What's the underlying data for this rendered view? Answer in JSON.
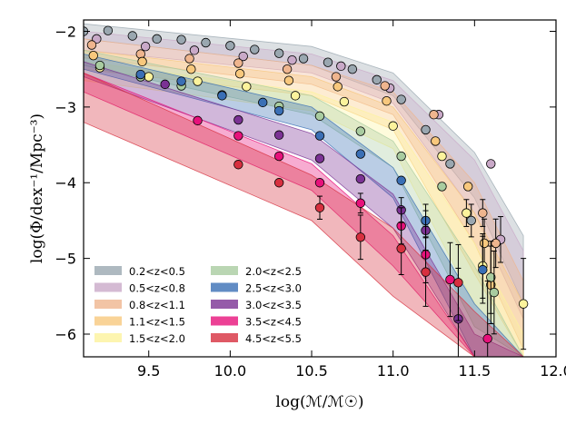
{
  "chart_data": {
    "type": "scatter",
    "xlabel": "log(ℳ/ℳ☉)",
    "ylabel": "log(Φ/dex⁻¹/Mpc⁻³)",
    "xlim": [
      9.1,
      12.0
    ],
    "ylim": [
      -6.3,
      -1.85
    ],
    "xticks": [
      9.5,
      10.0,
      10.5,
      11.0,
      11.5,
      12.0
    ],
    "xtick_labels": [
      "9.5",
      "10.0",
      "10.5",
      "11.0",
      "11.5",
      "12.0"
    ],
    "yticks": [
      -6,
      -5,
      -4,
      -3,
      -2
    ],
    "ytick_labels": [
      "−6",
      "−5",
      "−4",
      "−3",
      "−2"
    ],
    "grid": false,
    "legend_position": "lower-left",
    "series": [
      {
        "name": "0.2<z<0.5",
        "color": "#9aa7b0",
        "band": {
          "x": [
            9.1,
            10.5,
            11.0,
            11.5,
            11.8
          ],
          "lo": [
            -2.1,
            -2.45,
            -2.85,
            -4.2,
            -5.6
          ],
          "hi": [
            -1.9,
            -2.2,
            -2.55,
            -3.6,
            -4.7
          ]
        },
        "points": [
          {
            "x": 9.1,
            "y": -2.0
          },
          {
            "x": 9.25,
            "y": -1.99
          },
          {
            "x": 9.4,
            "y": -2.06
          },
          {
            "x": 9.55,
            "y": -2.1
          },
          {
            "x": 9.7,
            "y": -2.11
          },
          {
            "x": 9.85,
            "y": -2.15
          },
          {
            "x": 10.0,
            "y": -2.19
          },
          {
            "x": 10.15,
            "y": -2.24
          },
          {
            "x": 10.3,
            "y": -2.29
          },
          {
            "x": 10.45,
            "y": -2.36
          },
          {
            "x": 10.6,
            "y": -2.41
          },
          {
            "x": 10.75,
            "y": -2.5
          },
          {
            "x": 10.9,
            "y": -2.64
          },
          {
            "x": 11.05,
            "y": -2.9
          },
          {
            "x": 11.2,
            "y": -3.3
          },
          {
            "x": 11.35,
            "y": -3.75
          },
          {
            "x": 11.48,
            "y": -4.5
          }
        ]
      },
      {
        "name": "0.5<z<0.8",
        "color": "#c9a9c8",
        "band": {
          "x": [
            9.1,
            10.5,
            11.0,
            11.5,
            11.8
          ],
          "lo": [
            -2.25,
            -2.55,
            -2.95,
            -4.4,
            -5.8
          ],
          "hi": [
            -2.0,
            -2.3,
            -2.65,
            -3.7,
            -4.9
          ]
        },
        "points": [
          {
            "x": 9.18,
            "y": -2.1
          },
          {
            "x": 9.48,
            "y": -2.2
          },
          {
            "x": 9.78,
            "y": -2.25
          },
          {
            "x": 10.08,
            "y": -2.33
          },
          {
            "x": 10.38,
            "y": -2.38
          },
          {
            "x": 10.68,
            "y": -2.46
          },
          {
            "x": 10.98,
            "y": -2.75
          },
          {
            "x": 11.28,
            "y": -3.1
          },
          {
            "x": 11.6,
            "y": -3.75
          },
          {
            "x": 11.66,
            "y": -4.75
          }
        ]
      },
      {
        "name": "0.8<z<1.1",
        "color": "#efb58e",
        "band": {
          "x": [
            9.1,
            10.5,
            11.0,
            11.5,
            11.8
          ],
          "lo": [
            -2.35,
            -2.7,
            -3.1,
            -4.8,
            -6.2
          ],
          "hi": [
            -2.1,
            -2.45,
            -2.8,
            -4.0,
            -5.3
          ]
        },
        "points": [
          {
            "x": 9.15,
            "y": -2.18
          },
          {
            "x": 9.45,
            "y": -2.3
          },
          {
            "x": 9.75,
            "y": -2.36
          },
          {
            "x": 10.05,
            "y": -2.42
          },
          {
            "x": 10.35,
            "y": -2.5
          },
          {
            "x": 10.65,
            "y": -2.6
          },
          {
            "x": 10.95,
            "y": -2.72
          },
          {
            "x": 11.25,
            "y": -3.1
          },
          {
            "x": 11.55,
            "y": -4.4
          },
          {
            "x": 11.63,
            "y": -4.8
          }
        ]
      },
      {
        "name": "1.1<z<1.5",
        "color": "#f8c87d",
        "band": {
          "x": [
            9.1,
            10.5,
            11.0,
            11.5,
            11.8
          ],
          "lo": [
            -2.5,
            -2.85,
            -3.3,
            -5.2,
            -6.3
          ],
          "hi": [
            -2.25,
            -2.6,
            -3.0,
            -4.4,
            -5.6
          ]
        },
        "points": [
          {
            "x": 9.16,
            "y": -2.32
          },
          {
            "x": 9.46,
            "y": -2.4
          },
          {
            "x": 9.76,
            "y": -2.5
          },
          {
            "x": 10.06,
            "y": -2.56
          },
          {
            "x": 10.36,
            "y": -2.65
          },
          {
            "x": 10.66,
            "y": -2.73
          },
          {
            "x": 10.96,
            "y": -2.92
          },
          {
            "x": 11.26,
            "y": -3.45
          },
          {
            "x": 11.46,
            "y": -4.05
          },
          {
            "x": 11.56,
            "y": -4.8
          },
          {
            "x": 11.6,
            "y": -5.35
          }
        ]
      },
      {
        "name": "1.5<z<2.0",
        "color": "#fcf39c",
        "band": {
          "x": [
            9.1,
            10.5,
            11.0,
            11.5,
            11.8
          ],
          "lo": [
            -2.65,
            -3.05,
            -3.55,
            -5.6,
            -6.3
          ],
          "hi": [
            -2.4,
            -2.8,
            -3.2,
            -4.8,
            -6.0
          ]
        },
        "points": [
          {
            "x": 9.2,
            "y": -2.48
          },
          {
            "x": 9.5,
            "y": -2.6
          },
          {
            "x": 9.8,
            "y": -2.66
          },
          {
            "x": 10.1,
            "y": -2.73
          },
          {
            "x": 10.4,
            "y": -2.85
          },
          {
            "x": 10.7,
            "y": -2.93
          },
          {
            "x": 11.0,
            "y": -3.25
          },
          {
            "x": 11.3,
            "y": -3.65
          },
          {
            "x": 11.45,
            "y": -4.4
          },
          {
            "x": 11.55,
            "y": -5.1
          },
          {
            "x": 11.8,
            "y": -5.6
          }
        ]
      },
      {
        "name": "2.0<z<2.5",
        "color": "#a9cca0",
        "band": {
          "x": [
            9.1,
            10.5,
            11.0,
            11.5,
            11.8
          ],
          "lo": [
            -2.45,
            -3.1,
            -3.8,
            -5.9,
            -6.3
          ],
          "hi": [
            -2.25,
            -2.85,
            -3.45,
            -5.1,
            -6.3
          ]
        },
        "points": [
          {
            "x": 9.2,
            "y": -2.45
          },
          {
            "x": 9.45,
            "y": -2.6
          },
          {
            "x": 9.7,
            "y": -2.72
          },
          {
            "x": 9.95,
            "y": -2.84
          },
          {
            "x": 10.3,
            "y": -2.99
          },
          {
            "x": 10.55,
            "y": -3.12
          },
          {
            "x": 10.8,
            "y": -3.32
          },
          {
            "x": 11.05,
            "y": -3.65
          },
          {
            "x": 11.3,
            "y": -4.05
          },
          {
            "x": 11.6,
            "y": -5.25
          },
          {
            "x": 11.62,
            "y": -5.45
          }
        ]
      },
      {
        "name": "2.5<z<3.0",
        "color": "#3a6fb5",
        "band": {
          "x": [
            9.1,
            10.5,
            11.0,
            11.5,
            11.8
          ],
          "lo": [
            -2.5,
            -3.3,
            -4.2,
            -6.3,
            -6.3
          ],
          "hi": [
            -2.3,
            -3.0,
            -3.8,
            -5.6,
            -6.3
          ]
        },
        "points": [
          {
            "x": 9.45,
            "y": -2.57
          },
          {
            "x": 9.7,
            "y": -2.66
          },
          {
            "x": 9.95,
            "y": -2.85
          },
          {
            "x": 10.2,
            "y": -2.94
          },
          {
            "x": 10.3,
            "y": -3.05
          },
          {
            "x": 10.55,
            "y": -3.38
          },
          {
            "x": 10.8,
            "y": -3.62
          },
          {
            "x": 11.05,
            "y": -3.97
          },
          {
            "x": 11.2,
            "y": -4.5
          },
          {
            "x": 11.55,
            "y": -5.15
          }
        ]
      },
      {
        "name": "3.0<z<3.5",
        "color": "#7b3294",
        "band": {
          "x": [
            9.1,
            10.5,
            11.0,
            11.5,
            11.8
          ],
          "lo": [
            -2.6,
            -3.7,
            -4.6,
            -6.3,
            -6.3
          ],
          "hi": [
            -2.4,
            -3.35,
            -4.15,
            -6.0,
            -6.3
          ]
        },
        "points": [
          {
            "x": 9.6,
            "y": -2.7
          },
          {
            "x": 10.05,
            "y": -3.17
          },
          {
            "x": 10.3,
            "y": -3.37
          },
          {
            "x": 10.55,
            "y": -3.68
          },
          {
            "x": 10.8,
            "y": -3.95
          },
          {
            "x": 11.05,
            "y": -4.36
          },
          {
            "x": 11.2,
            "y": -4.63
          },
          {
            "x": 11.4,
            "y": -5.8
          }
        ]
      },
      {
        "name": "3.5<z<4.5",
        "color": "#e7127b",
        "band": {
          "x": [
            9.1,
            10.5,
            11.0,
            11.5,
            11.8
          ],
          "lo": [
            -2.8,
            -4.1,
            -5.1,
            -6.3,
            -6.3
          ],
          "hi": [
            -2.55,
            -3.75,
            -4.7,
            -6.3,
            -6.3
          ]
        },
        "points": [
          {
            "x": 9.8,
            "y": -3.18
          },
          {
            "x": 10.05,
            "y": -3.38
          },
          {
            "x": 10.3,
            "y": -3.65
          },
          {
            "x": 10.55,
            "y": -4.0
          },
          {
            "x": 10.8,
            "y": -4.27
          },
          {
            "x": 11.05,
            "y": -4.57
          },
          {
            "x": 11.2,
            "y": -4.95
          },
          {
            "x": 11.35,
            "y": -5.28
          },
          {
            "x": 11.58,
            "y": -6.06
          }
        ]
      },
      {
        "name": "4.5<z<5.5",
        "color": "#d7303f",
        "band": {
          "x": [
            9.1,
            10.5,
            11.0,
            11.5,
            11.8
          ],
          "lo": [
            -3.2,
            -4.5,
            -5.5,
            -6.3,
            -6.3
          ],
          "hi": [
            -2.55,
            -3.9,
            -4.6,
            -5.7,
            -6.3
          ]
        },
        "points": [
          {
            "x": 10.05,
            "y": -3.76
          },
          {
            "x": 10.3,
            "y": -4.0
          },
          {
            "x": 10.55,
            "y": -4.33
          },
          {
            "x": 10.8,
            "y": -4.72
          },
          {
            "x": 11.05,
            "y": -4.87
          },
          {
            "x": 11.2,
            "y": -5.18
          },
          {
            "x": 11.4,
            "y": -5.32
          }
        ]
      }
    ]
  }
}
